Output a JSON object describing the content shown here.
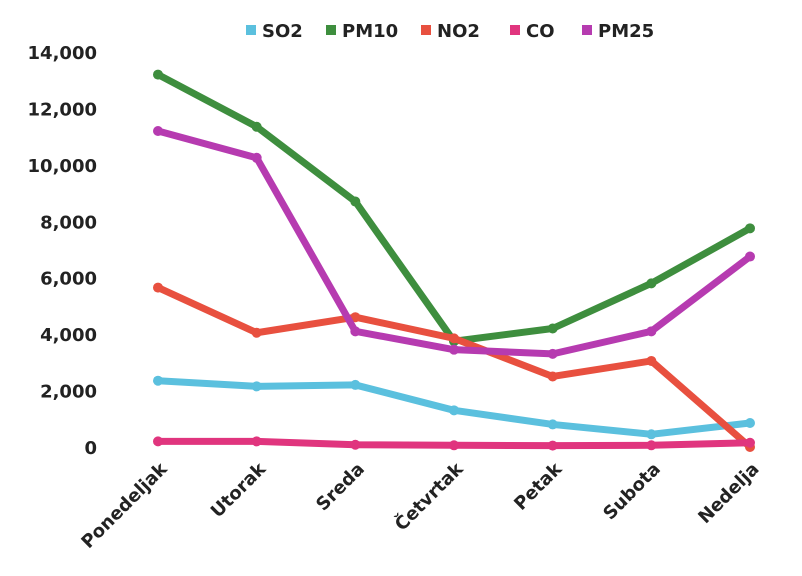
{
  "chart_data": {
    "type": "line",
    "categories": [
      "Ponedeljak",
      "Utorak",
      "Sreda",
      "Četvrtak",
      "Petak",
      "Subota",
      "Nedelja"
    ],
    "y_tick_labels": [
      "0",
      "2,000",
      "4,000",
      "6,000",
      "8,000",
      "10,000",
      "12,000",
      "14,000"
    ],
    "ylim": [
      0,
      14000
    ],
    "y_tick_step": 2000,
    "grid": false,
    "legend_position": "top",
    "series": [
      {
        "name": "SO2",
        "color": "#5BC0DE",
        "values": [
          2350,
          2150,
          2200,
          1300,
          800,
          450,
          850
        ]
      },
      {
        "name": "PM10",
        "color": "#3E8E3E",
        "values": [
          13200,
          11350,
          8700,
          3750,
          4200,
          5800,
          7750
        ]
      },
      {
        "name": "NO2",
        "color": "#E8503F",
        "values": [
          5650,
          4050,
          4600,
          3850,
          2500,
          3050,
          0
        ]
      },
      {
        "name": "CO",
        "color": "#E0357E",
        "values": [
          200,
          200,
          80,
          60,
          50,
          60,
          150
        ]
      },
      {
        "name": "PM25",
        "color": "#B63BB0",
        "values": [
          11200,
          10250,
          4100,
          3450,
          3300,
          4100,
          6750
        ]
      }
    ]
  }
}
